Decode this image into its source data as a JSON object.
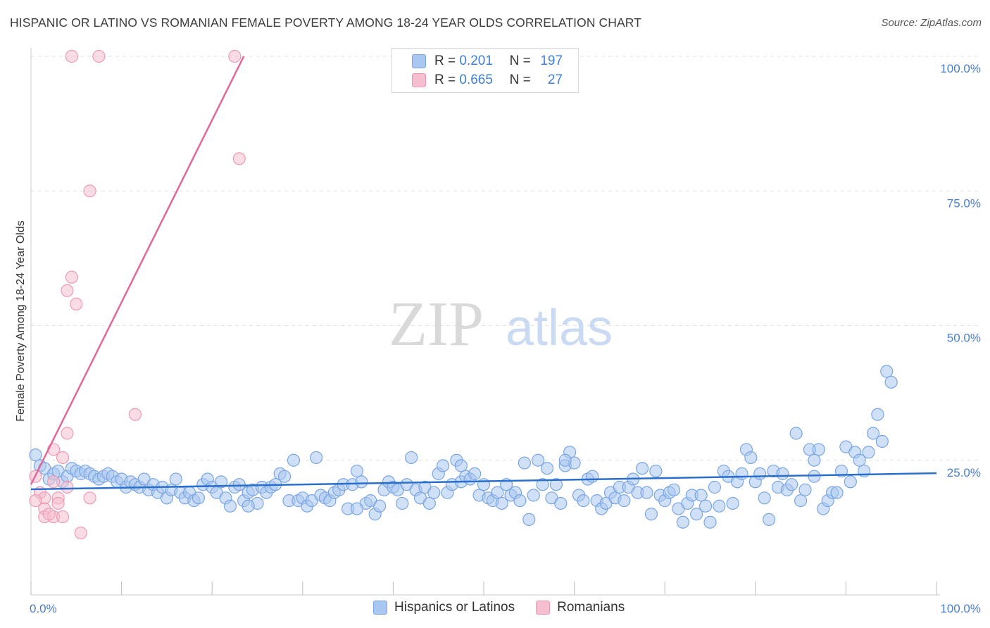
{
  "title": "HISPANIC OR LATINO VS ROMANIAN FEMALE POVERTY AMONG 18-24 YEAR OLDS CORRELATION CHART",
  "source": "Source: ZipAtlas.com",
  "watermark": {
    "zip": "ZIP",
    "atlas": "atlas"
  },
  "colors": {
    "blue_fill": "#a9c7f0",
    "blue_stroke": "#7aa6e3",
    "blue_line": "#2a6fcc",
    "pink_fill": "#f6bfd0",
    "pink_stroke": "#ee9ab5",
    "pink_line": "#e0689a",
    "axis_text": "#4a7fd0",
    "grid": "#e2e2e2"
  },
  "legend": {
    "rows": [
      {
        "r_label": "R =",
        "r_value": "0.201",
        "n_label": "N =",
        "n_value": "197"
      },
      {
        "r_label": "R =",
        "r_value": "0.665",
        "n_label": "N =",
        "n_value": "27"
      }
    ]
  },
  "bottom_legend": {
    "series1": "Hispanics or Latinos",
    "series2": "Romanians"
  },
  "chart_data": {
    "type": "scatter",
    "title": "HISPANIC OR LATINO VS ROMANIAN FEMALE POVERTY AMONG 18-24 YEAR OLDS CORRELATION CHART",
    "xlabel": "",
    "ylabel": "Female Poverty Among 18-24 Year Olds",
    "xlim": [
      0,
      100
    ],
    "ylim": [
      0,
      102
    ],
    "x_tick_labels": {
      "min": "0.0%",
      "max": "100.0%"
    },
    "y_ticks": [
      {
        "value": 100,
        "label": "100.0%"
      },
      {
        "value": 75,
        "label": "75.0%"
      },
      {
        "value": 50,
        "label": "50.0%"
      },
      {
        "value": 25,
        "label": "25.0%"
      }
    ],
    "series": [
      {
        "name": "Hispanics or Latinos",
        "r": 0.201,
        "n": 197,
        "trend": {
          "x": [
            0,
            100
          ],
          "y": [
            19.6,
            22.6
          ]
        },
        "points": [
          [
            0.5,
            26
          ],
          [
            1,
            24
          ],
          [
            1.5,
            23.5
          ],
          [
            2,
            21.5
          ],
          [
            2.5,
            22.5
          ],
          [
            3,
            23
          ],
          [
            3.5,
            21
          ],
          [
            4,
            22
          ],
          [
            4.5,
            23.5
          ],
          [
            5,
            23
          ],
          [
            5.5,
            22.5
          ],
          [
            6,
            23
          ],
          [
            6.5,
            22.5
          ],
          [
            7,
            22
          ],
          [
            7.5,
            21.5
          ],
          [
            8,
            22
          ],
          [
            8.5,
            22.5
          ],
          [
            9,
            22
          ],
          [
            9.5,
            21
          ],
          [
            10,
            21.5
          ],
          [
            10.5,
            20
          ],
          [
            11,
            21
          ],
          [
            11.5,
            20.5
          ],
          [
            12,
            20
          ],
          [
            12.5,
            21.5
          ],
          [
            13,
            19.5
          ],
          [
            13.5,
            20.5
          ],
          [
            14,
            19
          ],
          [
            14.5,
            20
          ],
          [
            15,
            18
          ],
          [
            15.5,
            19.5
          ],
          [
            16,
            21.5
          ],
          [
            16.5,
            19
          ],
          [
            17,
            18
          ],
          [
            17.5,
            19
          ],
          [
            18,
            17.5
          ],
          [
            18.5,
            18
          ],
          [
            19,
            20.5
          ],
          [
            19.5,
            21.5
          ],
          [
            20,
            20
          ],
          [
            20.5,
            19
          ],
          [
            21,
            21
          ],
          [
            21.5,
            18
          ],
          [
            22,
            16.5
          ],
          [
            22.5,
            20
          ],
          [
            23,
            20.5
          ],
          [
            23.5,
            17.5
          ],
          [
            24,
            19
          ],
          [
            24.5,
            19.5
          ],
          [
            25,
            17
          ],
          [
            25.5,
            20
          ],
          [
            26,
            19
          ],
          [
            26.5,
            20
          ],
          [
            27,
            20.5
          ],
          [
            27.5,
            22.5
          ],
          [
            28,
            22
          ],
          [
            28.5,
            17.5
          ],
          [
            29,
            25
          ],
          [
            29.5,
            17.5
          ],
          [
            30,
            18
          ],
          [
            30.5,
            16.5
          ],
          [
            31,
            17.5
          ],
          [
            31.5,
            25.5
          ],
          [
            32,
            18.5
          ],
          [
            32.5,
            18
          ],
          [
            33,
            17.5
          ],
          [
            33.5,
            19
          ],
          [
            34,
            19.5
          ],
          [
            34.5,
            20.5
          ],
          [
            35,
            16
          ],
          [
            35.5,
            20.5
          ],
          [
            36,
            23
          ],
          [
            36.5,
            21
          ],
          [
            37,
            17
          ],
          [
            37.5,
            17.5
          ],
          [
            38,
            15
          ],
          [
            38.5,
            16.5
          ],
          [
            39,
            19.5
          ],
          [
            39.5,
            21
          ],
          [
            40,
            20
          ],
          [
            40.5,
            19.5
          ],
          [
            41,
            17
          ],
          [
            41.5,
            20.5
          ],
          [
            42,
            25.5
          ],
          [
            42.5,
            19.5
          ],
          [
            43,
            18
          ],
          [
            43.5,
            20
          ],
          [
            44,
            17
          ],
          [
            44.5,
            19
          ],
          [
            45,
            22.5
          ],
          [
            45.5,
            24
          ],
          [
            46,
            19
          ],
          [
            46.5,
            20.5
          ],
          [
            47,
            25
          ],
          [
            47.5,
            21
          ],
          [
            48,
            22
          ],
          [
            48.5,
            21.5
          ],
          [
            49,
            22.5
          ],
          [
            49.5,
            18.5
          ],
          [
            50,
            20.5
          ],
          [
            50.5,
            18
          ],
          [
            51,
            17.5
          ],
          [
            51.5,
            19
          ],
          [
            52,
            17
          ],
          [
            52.5,
            20.5
          ],
          [
            53,
            18.5
          ],
          [
            53.5,
            19
          ],
          [
            54,
            17.5
          ],
          [
            54.5,
            24.5
          ],
          [
            55,
            14
          ],
          [
            55.5,
            18.5
          ],
          [
            56,
            25
          ],
          [
            56.5,
            20.5
          ],
          [
            57,
            23.5
          ],
          [
            57.5,
            18
          ],
          [
            58,
            20.5
          ],
          [
            58.5,
            17
          ],
          [
            59,
            24
          ],
          [
            59.5,
            26.5
          ],
          [
            60,
            24.5
          ],
          [
            60.5,
            18.5
          ],
          [
            61,
            17.5
          ],
          [
            61.5,
            21.5
          ],
          [
            62,
            22
          ],
          [
            62.5,
            17.5
          ],
          [
            63,
            16
          ],
          [
            63.5,
            17
          ],
          [
            64,
            19
          ],
          [
            64.5,
            18
          ],
          [
            65,
            20
          ],
          [
            65.5,
            17.5
          ],
          [
            66,
            20
          ],
          [
            66.5,
            21.5
          ],
          [
            67,
            19
          ],
          [
            67.5,
            23.5
          ],
          [
            68,
            19
          ],
          [
            68.5,
            15
          ],
          [
            69,
            23
          ],
          [
            69.5,
            18.5
          ],
          [
            70,
            17.5
          ],
          [
            70.5,
            19
          ],
          [
            71,
            19.5
          ],
          [
            71.5,
            16
          ],
          [
            72,
            13.5
          ],
          [
            72.5,
            17
          ],
          [
            73,
            18.5
          ],
          [
            73.5,
            15
          ],
          [
            74,
            18.5
          ],
          [
            74.5,
            16.5
          ],
          [
            75,
            13.5
          ],
          [
            75.5,
            20
          ],
          [
            76,
            16.5
          ],
          [
            76.5,
            23
          ],
          [
            77,
            22
          ],
          [
            77.5,
            17
          ],
          [
            78,
            21
          ],
          [
            78.5,
            22.5
          ],
          [
            79,
            27
          ],
          [
            79.5,
            25.5
          ],
          [
            80,
            21
          ],
          [
            80.5,
            22.5
          ],
          [
            81,
            18
          ],
          [
            81.5,
            14
          ],
          [
            82,
            23
          ],
          [
            82.5,
            20
          ],
          [
            83,
            22.5
          ],
          [
            83.5,
            19.5
          ],
          [
            84,
            20.5
          ],
          [
            84.5,
            30
          ],
          [
            85,
            17.5
          ],
          [
            85.5,
            19.5
          ],
          [
            86,
            27
          ],
          [
            86.5,
            25
          ],
          [
            87,
            27
          ],
          [
            87.5,
            16
          ],
          [
            88,
            17.5
          ],
          [
            88.5,
            19
          ],
          [
            89,
            19
          ],
          [
            89.5,
            23
          ],
          [
            90,
            27.5
          ],
          [
            90.5,
            21
          ],
          [
            91,
            26.5
          ],
          [
            91.5,
            25
          ],
          [
            92,
            23
          ],
          [
            92.5,
            26.5
          ],
          [
            93,
            30
          ],
          [
            93.5,
            33.5
          ],
          [
            94,
            28.5
          ],
          [
            94.5,
            41.5
          ],
          [
            95,
            39.5
          ],
          [
            59,
            25
          ],
          [
            86.5,
            22
          ],
          [
            24,
            16.5
          ],
          [
            36,
            16
          ],
          [
            47.5,
            24
          ]
        ]
      },
      {
        "name": "Romanians",
        "r": 0.665,
        "n": 27,
        "trend": {
          "x": [
            0,
            23.5
          ],
          "y": [
            20.5,
            100
          ]
        },
        "points": [
          [
            4.5,
            100
          ],
          [
            7.5,
            100
          ],
          [
            22.5,
            100
          ],
          [
            23,
            81
          ],
          [
            6.5,
            75
          ],
          [
            4.5,
            59
          ],
          [
            4,
            56.5
          ],
          [
            5,
            54
          ],
          [
            11.5,
            33.5
          ],
          [
            4,
            30
          ],
          [
            2.5,
            27
          ],
          [
            3.5,
            25.5
          ],
          [
            0.5,
            22
          ],
          [
            1,
            19
          ],
          [
            2.5,
            21
          ],
          [
            1.5,
            18
          ],
          [
            3,
            18
          ],
          [
            4,
            20
          ],
          [
            6.5,
            18
          ],
          [
            0.5,
            17.5
          ],
          [
            1.5,
            16
          ],
          [
            3,
            17
          ],
          [
            1.5,
            14.5
          ],
          [
            2.5,
            14.5
          ],
          [
            2,
            15
          ],
          [
            3.5,
            14.5
          ],
          [
            5.5,
            11.5
          ]
        ]
      }
    ]
  }
}
